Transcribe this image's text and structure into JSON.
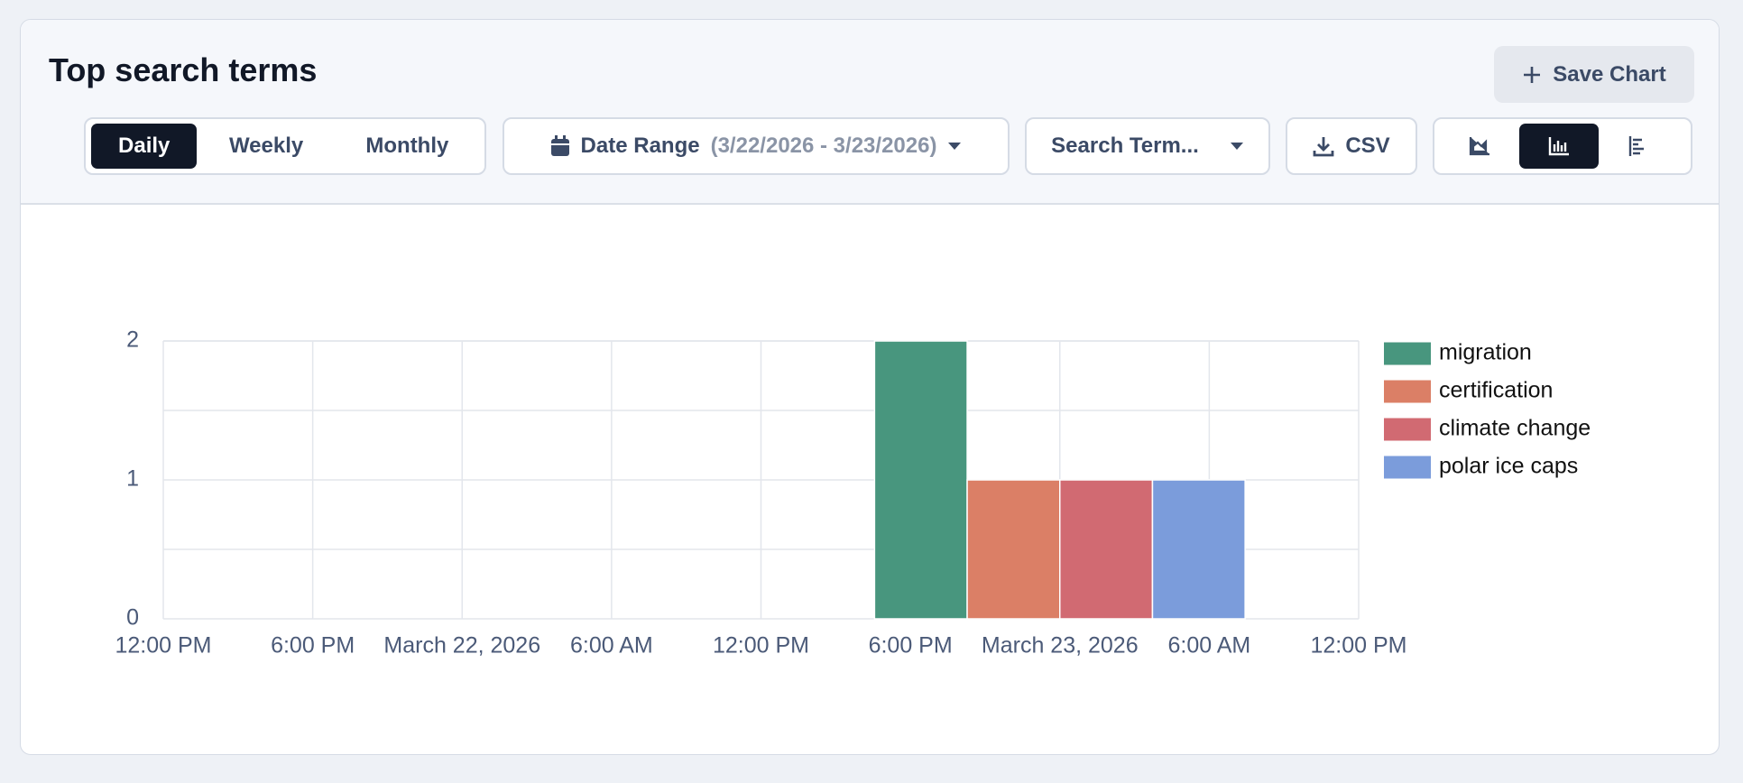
{
  "chart_data": {
    "type": "bar",
    "title": "Top search terms",
    "x": [
      "2026-03-23T00:00"
    ],
    "series": [
      {
        "name": "migration",
        "color": "#48967e",
        "values": [
          2
        ]
      },
      {
        "name": "certification",
        "color": "#db7f66",
        "values": [
          1
        ]
      },
      {
        "name": "climate change",
        "color": "#d16a72",
        "values": [
          1
        ]
      },
      {
        "name": "polar ice caps",
        "color": "#7b9cdb",
        "values": [
          1
        ]
      }
    ],
    "xlim": [
      "2026-03-21T12:00",
      "2026-03-23T12:00"
    ],
    "xticks": [
      {
        "value": "2026-03-21T12:00",
        "label": "12:00 PM"
      },
      {
        "value": "2026-03-21T18:00",
        "label": "6:00 PM"
      },
      {
        "value": "2026-03-22T00:00",
        "label": "March 22, 2026"
      },
      {
        "value": "2026-03-22T06:00",
        "label": "6:00 AM"
      },
      {
        "value": "2026-03-22T12:00",
        "label": "12:00 PM"
      },
      {
        "value": "2026-03-22T18:00",
        "label": "6:00 PM"
      },
      {
        "value": "2026-03-23T00:00",
        "label": "March 23, 2026"
      },
      {
        "value": "2026-03-23T06:00",
        "label": "6:00 AM"
      },
      {
        "value": "2026-03-23T12:00",
        "label": "12:00 PM"
      }
    ],
    "ylim": [
      0,
      2
    ],
    "yticks": [
      0,
      1,
      2
    ],
    "minor_yticks": [
      0.5,
      1.5
    ],
    "grid": true,
    "legend": "right"
  },
  "controls": {
    "periods": [
      "Daily",
      "Weekly",
      "Monthly"
    ],
    "date_range_label": "Date Range",
    "date_range_value": "(3/22/2026 - 3/23/2026)",
    "search_terms": "Search Term...",
    "csv": "CSV",
    "save": "Save Chart"
  }
}
